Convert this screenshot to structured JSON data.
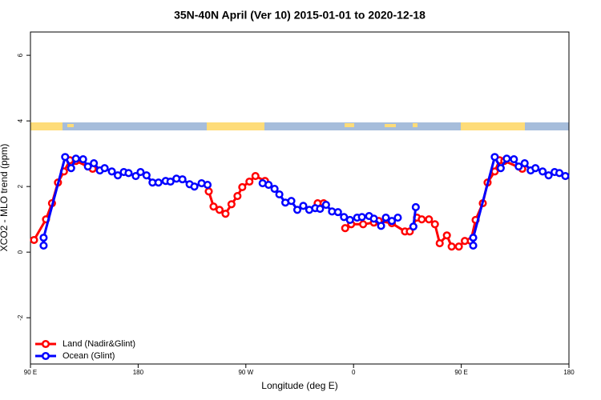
{
  "chart_data": {
    "type": "line",
    "title": "35N-40N April (Ver 10)   2015-01-01 to 2020-12-18",
    "x_label": "Longitude (deg E)",
    "y_label": "XCO2 - MLO trend (ppm)",
    "xlim": [
      90,
      540
    ],
    "xticks": [
      {
        "value": 90,
        "label": "90 E"
      },
      {
        "value": 180,
        "label": "180"
      },
      {
        "value": 270,
        "label": "90 W"
      },
      {
        "value": 360,
        "label": "0"
      },
      {
        "value": 450,
        "label": "90 E"
      },
      {
        "value": 540,
        "label": "180"
      }
    ],
    "ylim": [
      -3.41,
      6.71
    ],
    "yticks": [
      -2,
      0,
      2,
      4,
      6
    ],
    "legend": "bottom-left",
    "series": [
      {
        "name": "Land (Nadir&Glint)",
        "color": "#ff0000",
        "x": [
          93,
          103,
          108,
          113,
          118,
          123,
          128,
          142,
          null,
          239,
          243,
          248,
          253,
          258,
          263,
          267,
          273,
          278,
          286,
          null,
          330,
          335,
          null,
          353,
          358,
          368,
          377,
          381,
          392,
          403,
          407,
          413,
          417,
          423,
          428,
          432,
          438,
          442,
          448,
          453,
          458,
          462,
          468,
          472,
          478,
          482,
          486,
          501
        ],
        "values": [
          0.37,
          1.0,
          1.49,
          2.12,
          2.46,
          2.8,
          2.78,
          2.54,
          null,
          1.85,
          1.39,
          1.29,
          1.17,
          1.46,
          1.71,
          1.98,
          2.15,
          2.32,
          2.17,
          null,
          1.49,
          1.49,
          null,
          0.73,
          0.85,
          0.85,
          0.9,
          0.95,
          0.88,
          0.63,
          0.63,
          1.05,
          1.0,
          1.0,
          0.85,
          0.27,
          0.51,
          0.17,
          0.17,
          0.34,
          0.34,
          0.98,
          1.49,
          2.12,
          2.46,
          2.8,
          2.78,
          2.54
        ]
      },
      {
        "name": "Ocean (Glint)",
        "color": "#0000ff",
        "x": [
          101,
          101,
          119,
          124,
          128,
          134,
          138,
          143,
          148,
          152,
          158,
          163,
          168,
          172,
          178,
          182,
          187,
          192,
          197,
          203,
          207,
          212,
          217,
          223,
          227,
          233,
          238,
          null,
          284,
          289,
          294,
          298,
          303,
          308,
          313,
          318,
          323,
          328,
          332,
          337,
          342,
          347,
          352,
          357,
          363,
          367,
          373,
          377,
          383,
          387,
          392,
          397,
          null,
          410,
          412,
          null,
          460,
          460,
          478,
          483,
          488,
          494,
          498,
          503,
          508,
          512,
          518,
          523,
          528,
          532,
          537
        ],
        "values": [
          0.2,
          0.44,
          2.9,
          2.56,
          2.85,
          2.83,
          2.61,
          2.71,
          2.49,
          2.56,
          2.46,
          2.34,
          2.44,
          2.41,
          2.32,
          2.44,
          2.34,
          2.12,
          2.12,
          2.17,
          2.15,
          2.24,
          2.22,
          2.07,
          2.0,
          2.1,
          2.05,
          null,
          2.1,
          2.05,
          1.93,
          1.76,
          1.51,
          1.56,
          1.29,
          1.41,
          1.29,
          1.34,
          1.32,
          1.44,
          1.24,
          1.22,
          1.07,
          0.98,
          1.05,
          1.07,
          1.1,
          1.02,
          0.8,
          1.05,
          0.95,
          1.05,
          null,
          0.78,
          1.37,
          null,
          0.2,
          0.44,
          2.9,
          2.56,
          2.85,
          2.83,
          2.61,
          2.71,
          2.49,
          2.56,
          2.46,
          2.34,
          2.44,
          2.41,
          2.32
        ]
      }
    ]
  }
}
